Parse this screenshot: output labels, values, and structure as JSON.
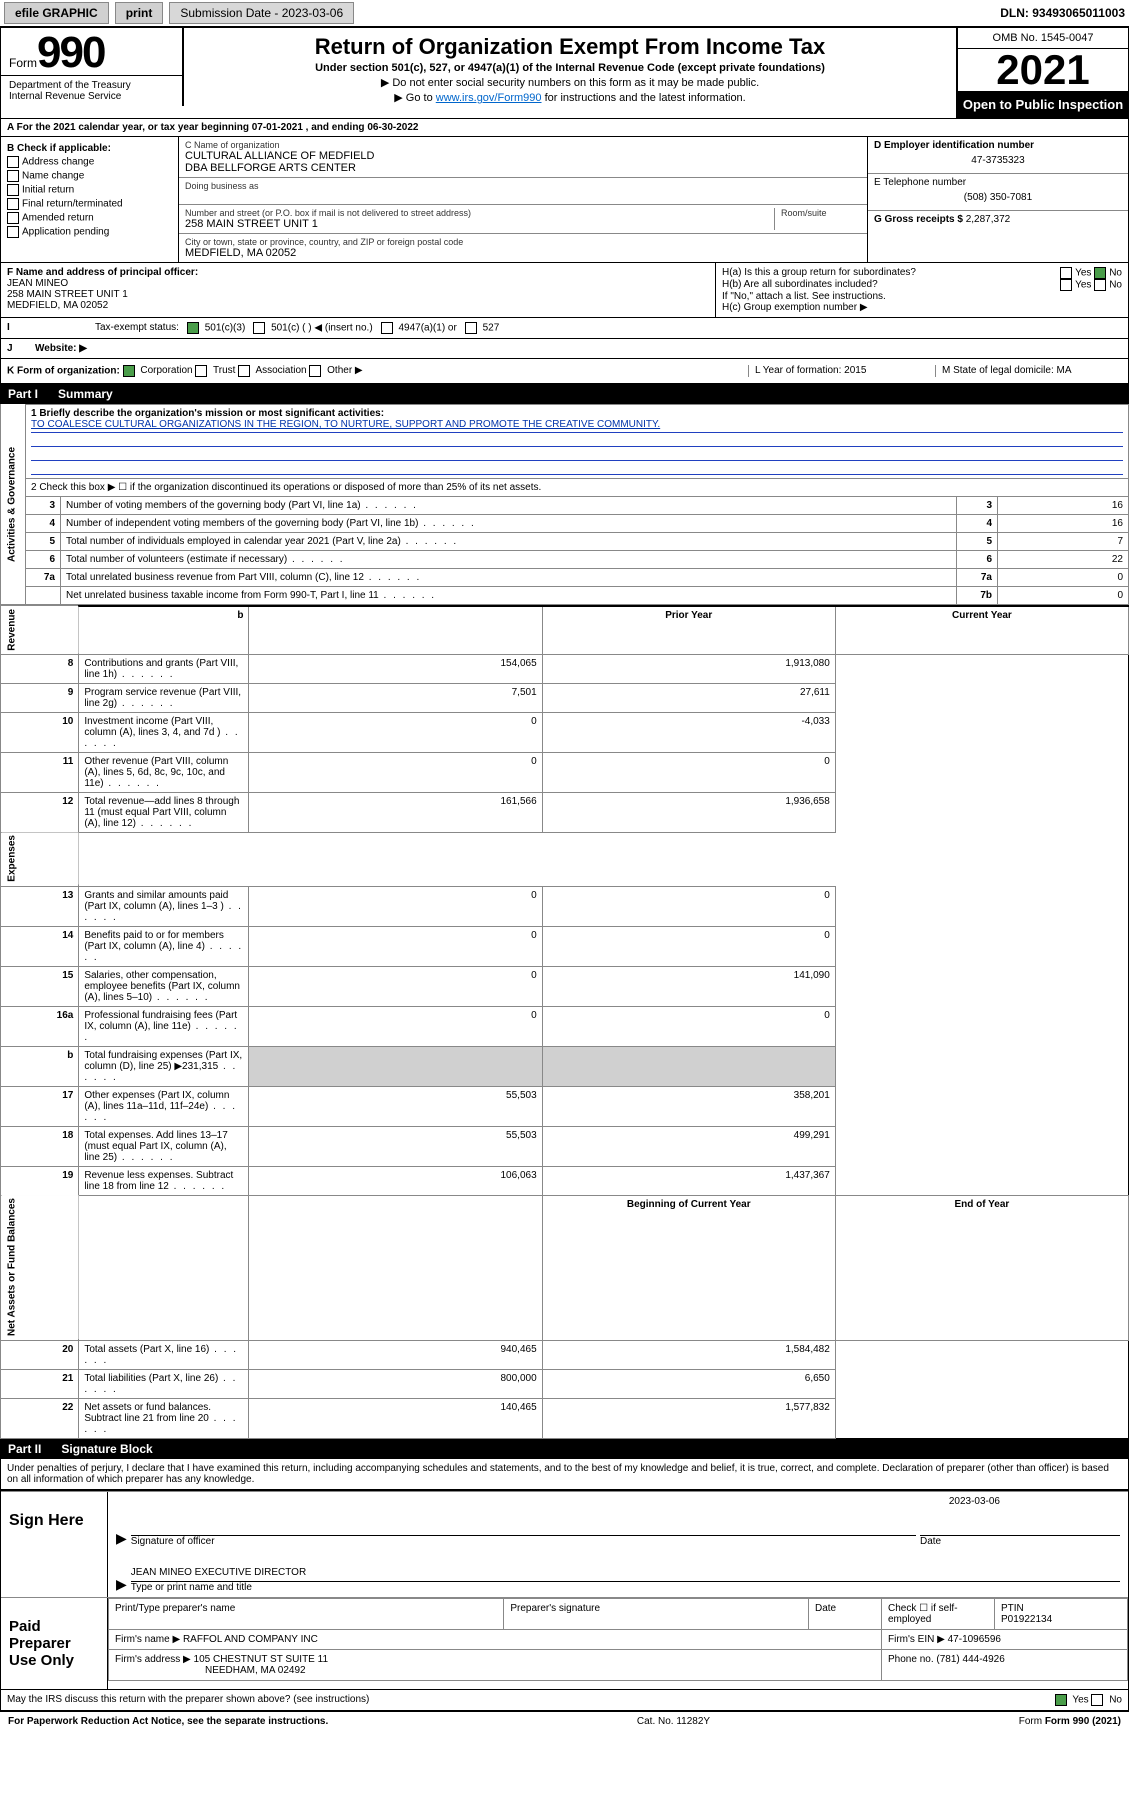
{
  "topbar": {
    "efile": "efile GRAPHIC",
    "print": "print",
    "submission": "Submission Date - 2023-03-06",
    "dln": "DLN: 93493065011003"
  },
  "header": {
    "form_word": "Form",
    "form_num": "990",
    "title": "Return of Organization Exempt From Income Tax",
    "subtitle": "Under section 501(c), 527, or 4947(a)(1) of the Internal Revenue Code (except private foundations)",
    "instr1": "▶ Do not enter social security numbers on this form as it may be made public.",
    "instr2_pre": "▶ Go to ",
    "instr2_link": "www.irs.gov/Form990",
    "instr2_post": " for instructions and the latest information.",
    "dept": "Department of the Treasury\nInternal Revenue Service",
    "omb": "OMB No. 1545-0047",
    "year": "2021",
    "open": "Open to Public Inspection"
  },
  "section_a": {
    "a_line": "A  For the 2021 calendar year, or tax year beginning 07-01-2021   , and ending 06-30-2022",
    "b_label": "B Check if applicable:",
    "b_items": [
      "Address change",
      "Name change",
      "Initial return",
      "Final return/terminated",
      "Amended return",
      "Application pending"
    ],
    "c_label": "C Name of organization",
    "c_name": "CULTURAL ALLIANCE OF MEDFIELD",
    "c_dba": "DBA BELLFORGE ARTS CENTER",
    "dba_label": "Doing business as",
    "street_label": "Number and street (or P.O. box if mail is not delivered to street address)",
    "room_label": "Room/suite",
    "street": "258 MAIN STREET UNIT 1",
    "city_label": "City or town, state or province, country, and ZIP or foreign postal code",
    "city": "MEDFIELD, MA  02052",
    "d_label": "D Employer identification number",
    "d_val": "47-3735323",
    "e_label": "E Telephone number",
    "e_val": "(508) 350-7081",
    "g_label": "G Gross receipts $",
    "g_val": "2,287,372",
    "f_label": "F Name and address of principal officer:",
    "f_name": "JEAN MINEO",
    "f_addr1": "258 MAIN STREET UNIT 1",
    "f_addr2": "MEDFIELD, MA  02052",
    "ha_label": "H(a)  Is this a group return for subordinates?",
    "ha_yes": "Yes",
    "ha_no": "No",
    "hb_label": "H(b)  Are all subordinates included?",
    "hb_note": "If \"No,\" attach a list. See instructions.",
    "hc_label": "H(c)  Group exemption number ▶",
    "i_label": "Tax-exempt status:",
    "i_501c3": "501(c)(3)",
    "i_501c": "501(c) (   ) ◀ (insert no.)",
    "i_4947": "4947(a)(1) or",
    "i_527": "527",
    "j_label": "Website: ▶",
    "k_label": "K Form of organization:",
    "k_corp": "Corporation",
    "k_trust": "Trust",
    "k_assoc": "Association",
    "k_other": "Other ▶",
    "l_label": "L Year of formation: 2015",
    "m_label": "M State of legal domicile: MA"
  },
  "part1": {
    "label": "Part I",
    "title": "Summary",
    "line1_label": "1  Briefly describe the organization's mission or most significant activities:",
    "mission": "TO COALESCE CULTURAL ORGANIZATIONS IN THE REGION, TO NURTURE, SUPPORT AND PROMOTE THE CREATIVE COMMUNITY.",
    "line2": "2   Check this box ▶ ☐  if the organization discontinued its operations or disposed of more than 25% of its net assets.",
    "rows_gov": [
      {
        "n": "3",
        "label": "Number of voting members of the governing body (Part VI, line 1a)",
        "box": "3",
        "val": "16"
      },
      {
        "n": "4",
        "label": "Number of independent voting members of the governing body (Part VI, line 1b)",
        "box": "4",
        "val": "16"
      },
      {
        "n": "5",
        "label": "Total number of individuals employed in calendar year 2021 (Part V, line 2a)",
        "box": "5",
        "val": "7"
      },
      {
        "n": "6",
        "label": "Total number of volunteers (estimate if necessary)",
        "box": "6",
        "val": "22"
      },
      {
        "n": "7a",
        "label": "Total unrelated business revenue from Part VIII, column (C), line 12",
        "box": "7a",
        "val": "0"
      },
      {
        "n": "",
        "label": "Net unrelated business taxable income from Form 990-T, Part I, line 11",
        "box": "7b",
        "val": "0"
      }
    ],
    "prior_hdr": "Prior Year",
    "curr_hdr": "Current Year",
    "rows_rev": [
      {
        "n": "8",
        "label": "Contributions and grants (Part VIII, line 1h)",
        "prior": "154,065",
        "curr": "1,913,080"
      },
      {
        "n": "9",
        "label": "Program service revenue (Part VIII, line 2g)",
        "prior": "7,501",
        "curr": "27,611"
      },
      {
        "n": "10",
        "label": "Investment income (Part VIII, column (A), lines 3, 4, and 7d )",
        "prior": "0",
        "curr": "-4,033"
      },
      {
        "n": "11",
        "label": "Other revenue (Part VIII, column (A), lines 5, 6d, 8c, 9c, 10c, and 11e)",
        "prior": "0",
        "curr": "0"
      },
      {
        "n": "12",
        "label": "Total revenue—add lines 8 through 11 (must equal Part VIII, column (A), line 12)",
        "prior": "161,566",
        "curr": "1,936,658"
      }
    ],
    "rows_exp": [
      {
        "n": "13",
        "label": "Grants and similar amounts paid (Part IX, column (A), lines 1–3 )",
        "prior": "0",
        "curr": "0"
      },
      {
        "n": "14",
        "label": "Benefits paid to or for members (Part IX, column (A), line 4)",
        "prior": "0",
        "curr": "0"
      },
      {
        "n": "15",
        "label": "Salaries, other compensation, employee benefits (Part IX, column (A), lines 5–10)",
        "prior": "0",
        "curr": "141,090"
      },
      {
        "n": "16a",
        "label": "Professional fundraising fees (Part IX, column (A), line 11e)",
        "prior": "0",
        "curr": "0"
      },
      {
        "n": "b",
        "label": "Total fundraising expenses (Part IX, column (D), line 25) ▶231,315",
        "prior": "",
        "curr": ""
      },
      {
        "n": "17",
        "label": "Other expenses (Part IX, column (A), lines 11a–11d, 11f–24e)",
        "prior": "55,503",
        "curr": "358,201"
      },
      {
        "n": "18",
        "label": "Total expenses. Add lines 13–17 (must equal Part IX, column (A), line 25)",
        "prior": "55,503",
        "curr": "499,291"
      },
      {
        "n": "19",
        "label": "Revenue less expenses. Subtract line 18 from line 12",
        "prior": "106,063",
        "curr": "1,437,367"
      }
    ],
    "begin_hdr": "Beginning of Current Year",
    "end_hdr": "End of Year",
    "rows_bal": [
      {
        "n": "20",
        "label": "Total assets (Part X, line 16)",
        "prior": "940,465",
        "curr": "1,584,482"
      },
      {
        "n": "21",
        "label": "Total liabilities (Part X, line 26)",
        "prior": "800,000",
        "curr": "6,650"
      },
      {
        "n": "22",
        "label": "Net assets or fund balances. Subtract line 21 from line 20",
        "prior": "140,465",
        "curr": "1,577,832"
      }
    ],
    "side_gov": "Activities & Governance",
    "side_rev": "Revenue",
    "side_exp": "Expenses",
    "side_bal": "Net Assets or Fund Balances"
  },
  "part2": {
    "label": "Part II",
    "title": "Signature Block",
    "declaration": "Under penalties of perjury, I declare that I have examined this return, including accompanying schedules and statements, and to the best of my knowledge and belief, it is true, correct, and complete. Declaration of preparer (other than officer) is based on all information of which preparer has any knowledge.",
    "sign_here": "Sign Here",
    "sig_officer": "Signature of officer",
    "sig_date_label": "Date",
    "sig_date": "2023-03-06",
    "officer_name": "JEAN MINEO  EXECUTIVE DIRECTOR",
    "type_name": "Type or print name and title",
    "paid_prep": "Paid Preparer Use Only",
    "prep_name_label": "Print/Type preparer's name",
    "prep_sig_label": "Preparer's signature",
    "prep_date_label": "Date",
    "prep_check": "Check ☐ if self-employed",
    "ptin_label": "PTIN",
    "ptin": "P01922134",
    "firm_name_label": "Firm's name    ▶",
    "firm_name": "RAFFOL AND COMPANY INC",
    "firm_ein_label": "Firm's EIN ▶",
    "firm_ein": "47-1096596",
    "firm_addr_label": "Firm's address ▶",
    "firm_addr1": "105 CHESTNUT ST SUITE 11",
    "firm_addr2": "NEEDHAM, MA  02492",
    "phone_label": "Phone no.",
    "phone": "(781) 444-4926",
    "discuss": "May the IRS discuss this return with the preparer shown above? (see instructions)",
    "yes": "Yes",
    "no": "No"
  },
  "footer": {
    "paperwork": "For Paperwork Reduction Act Notice, see the separate instructions.",
    "cat": "Cat. No. 11282Y",
    "form": "Form 990 (2021)"
  },
  "colors": {
    "link": "#0033aa",
    "check_green": "#4a9d4a",
    "rule_blue": "#2040c0"
  }
}
